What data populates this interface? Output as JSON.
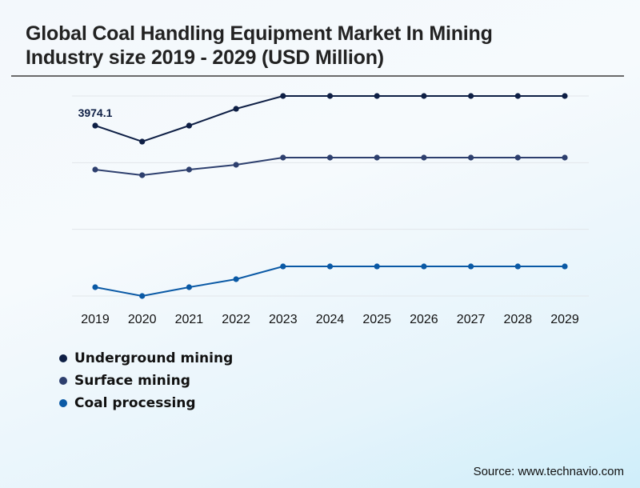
{
  "chart_data": {
    "type": "line",
    "title": "Global Coal Handling Equipment Market In Mining Industry size 2019 - 2029 (USD Million)",
    "xlabel": "",
    "ylabel": "",
    "categories": [
      "2019",
      "2020",
      "2021",
      "2022",
      "2023",
      "2024",
      "2025",
      "2026",
      "2027",
      "2028",
      "2029"
    ],
    "series": [
      {
        "name": "Underground mining",
        "color": "#0e1f45",
        "values": [
          3974.1,
          3601,
          3974,
          4366,
          4665,
          4665,
          4665,
          4665,
          4665,
          4665,
          4665
        ]
      },
      {
        "name": "Surface mining",
        "color": "#2d3f6e",
        "values": [
          2948,
          2818,
          2948,
          3060,
          3228,
          3228,
          3228,
          3228,
          3228,
          3228,
          3228
        ]
      },
      {
        "name": "Coal processing",
        "color": "#0a59a5",
        "values": [
          205,
          0,
          205,
          392,
          690,
          690,
          690,
          690,
          690,
          690,
          690
        ]
      }
    ],
    "data_labels": [
      {
        "series": "Underground mining",
        "category": "2019",
        "text": "3974.1"
      }
    ],
    "ylim": [
      0,
      4665
    ],
    "gridlines": [
      0,
      1555,
      3110,
      4665
    ],
    "grid": true,
    "y_tick_labels_visible": false,
    "legend_position": "bottom-left"
  },
  "source": "Source: www.technavio.com"
}
